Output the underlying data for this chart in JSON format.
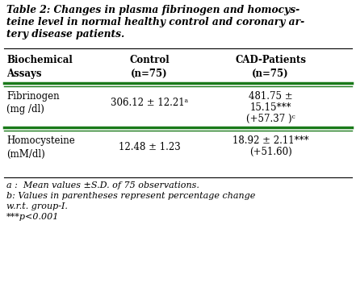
{
  "title_line1": "Table 2: Changes in plasma fibrinogen and homocys-",
  "title_line2": "teine level in normal healthy control and coronary ar-",
  "title_line3": "tery disease patients.",
  "col_headers": [
    "Biochemical\nAssays",
    "Control\n(n=75)",
    "CAD-Patients\n(n=75)"
  ],
  "row1_label": "Fibrinogen\n(mg /dl)",
  "row1_ctrl": "306.12 ± 12.21ᵃ",
  "row1_cad_line1": "481.75 ±",
  "row1_cad_line2": "15.15***",
  "row1_cad_line3": "(+57.37 )ᶜ",
  "row2_label": "Homocysteine\n(mM/dl)",
  "row2_ctrl": "12.48 ± 1.23",
  "row2_cad_line1": "18.92 ± 2.11***",
  "row2_cad_line2": "(+51.60)",
  "fn1": "a :  Mean values ±S.D. of 75 observations.",
  "fn2": "b: Values in parentheses represent percentage change",
  "fn3": "w.r.t. group-I.",
  "fn4": "***p<0.001",
  "green_color": "#1a7a1a",
  "black_color": "#000000",
  "bg_color": "#ffffff",
  "font_size": 8.5,
  "title_font_size": 8.8
}
